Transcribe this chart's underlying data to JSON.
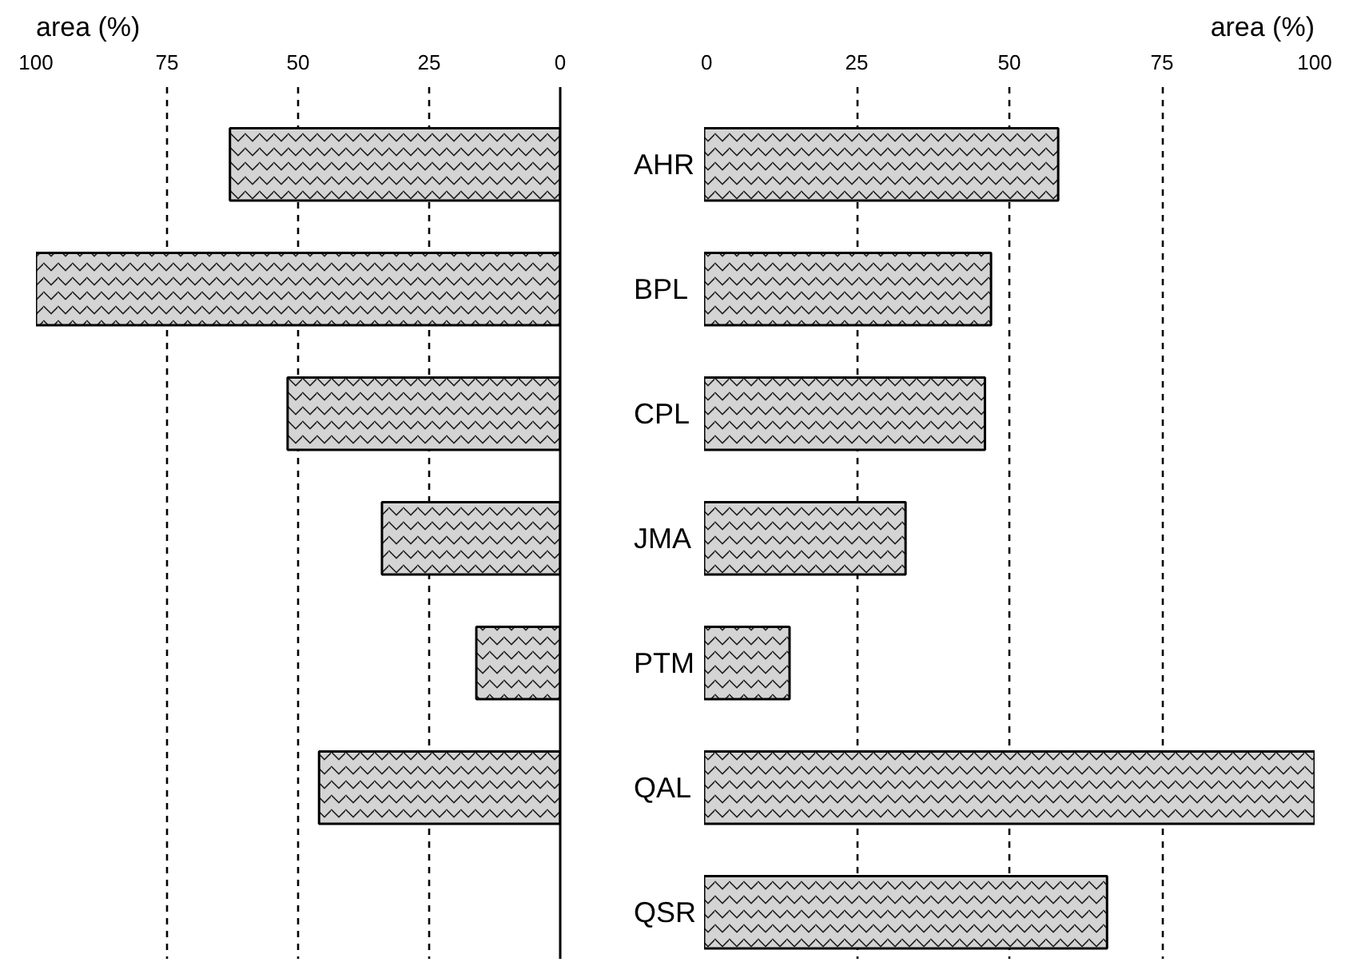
{
  "chart_data": [
    {
      "type": "bar",
      "orientation": "horizontal",
      "xlabel": "area (%)",
      "categories": [
        "AHR",
        "BPL",
        "CPL",
        "JMA",
        "PTM",
        "QAL",
        "QSR"
      ],
      "series": [
        {
          "color": "#d4d4d4",
          "values": [
            63,
            100,
            52,
            34,
            16,
            46,
            null
          ]
        }
      ],
      "xlim": [
        100,
        0
      ],
      "xticks": [
        100,
        75,
        50,
        25,
        0
      ],
      "grid": "x"
    },
    {
      "type": "bar",
      "orientation": "horizontal",
      "xlabel": "area (%)",
      "categories": [
        null,
        null,
        null,
        null,
        null,
        null,
        null
      ],
      "series": [
        {
          "color": "#d4d4d4",
          "values": [
            58,
            47,
            46,
            33,
            14,
            100,
            66
          ]
        }
      ],
      "xlim": [
        0,
        100
      ],
      "xticks": [
        0,
        25,
        50,
        75,
        100
      ],
      "grid": "x",
      "tick_labels": "x"
    }
  ]
}
